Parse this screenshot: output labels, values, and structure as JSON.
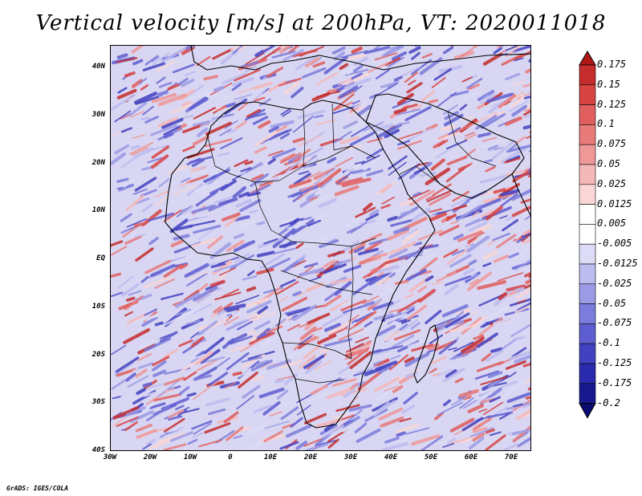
{
  "title": "Vertical velocity [m/s] at 200hPa, VT: 2020011018",
  "credit": "GrADS: IGES/COLA",
  "axes": {
    "lat_labels": [
      "40N",
      "30N",
      "20N",
      "10N",
      "EQ",
      "10S",
      "20S",
      "30S",
      "40S"
    ],
    "lon_labels": [
      "30W",
      "20W",
      "10W",
      "0",
      "10E",
      "20E",
      "30E",
      "40E",
      "50E",
      "60E",
      "70E"
    ]
  },
  "colorbar": {
    "labels": [
      "0.175",
      "0.15",
      "0.125",
      "0.1",
      "0.075",
      "0.05",
      "0.025",
      "0.0125",
      "0.005",
      "-0.005",
      "-0.0125",
      "-0.025",
      "-0.05",
      "-0.075",
      "-0.1",
      "-0.125",
      "-0.175",
      "-0.2"
    ],
    "colors": [
      "#b01818",
      "#c52c2c",
      "#d74444",
      "#e05e5e",
      "#e87a7a",
      "#ef9898",
      "#f5b8b8",
      "#fad6d6",
      "#ffffff",
      "#ffffff",
      "#dcdcf6",
      "#bcbcef",
      "#9c9ce6",
      "#7c7cdc",
      "#5e5ed0",
      "#4242c0",
      "#2a2aac",
      "#18188f",
      "#0a0a70"
    ]
  },
  "map": {
    "field_name": "vertical velocity",
    "level": "200hPa",
    "valid_time": "2020011018",
    "lon_range": [
      -30,
      75
    ],
    "lat_range": [
      -40,
      45
    ]
  }
}
